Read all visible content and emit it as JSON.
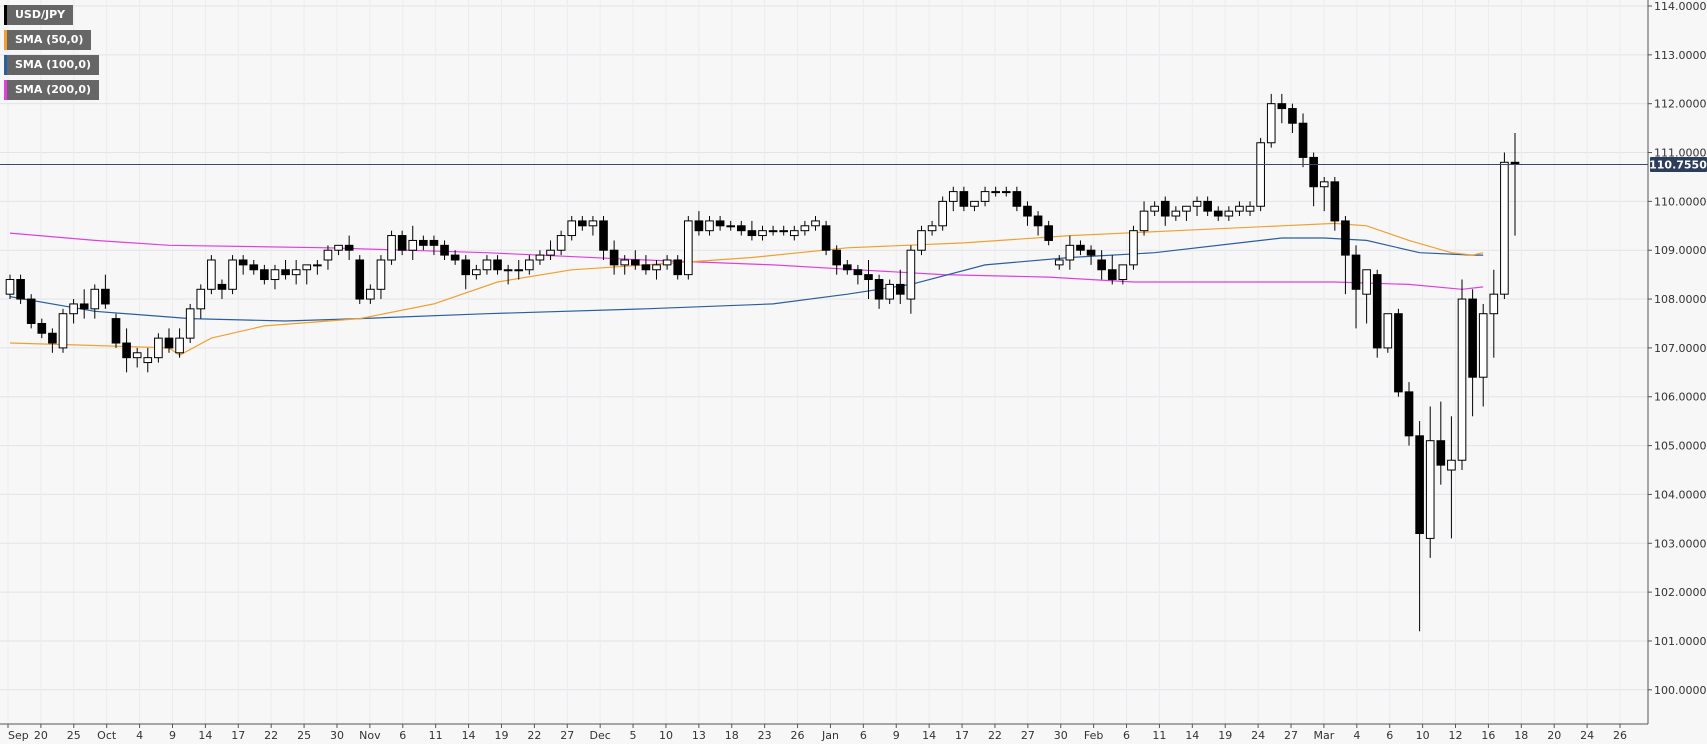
{
  "chart_data": {
    "type": "candlestick",
    "symbol": "USD/JPY",
    "timeframe": "daily",
    "y_axis": {
      "min": 99.3,
      "max": 114.0,
      "ticks": [
        "114.0000",
        "113.0000",
        "112.0000",
        "111.0000",
        "110.0000",
        "109.0000",
        "108.0000",
        "107.0000",
        "106.0000",
        "105.0000",
        "104.0000",
        "103.0000",
        "102.0000",
        "101.0000",
        "100.0000"
      ]
    },
    "x_axis": {
      "labels": [
        "Sep",
        "20",
        "25",
        "Oct",
        "4",
        "9",
        "14",
        "17",
        "22",
        "25",
        "30",
        "Nov",
        "6",
        "11",
        "14",
        "19",
        "22",
        "27",
        "Dec",
        "5",
        "10",
        "13",
        "18",
        "23",
        "26",
        "Jan",
        "6",
        "9",
        "14",
        "17",
        "22",
        "27",
        "30",
        "Feb",
        "6",
        "11",
        "14",
        "19",
        "24",
        "27",
        "Mar",
        "4",
        "6",
        "10",
        "12",
        "16",
        "18",
        "20",
        "24",
        "26"
      ]
    },
    "current_price": {
      "label": "110.7550",
      "value": 110.755
    },
    "colors": {
      "up": "#ffffff",
      "down": "#000000",
      "sma50": "#f0a030",
      "sma100": "#2a5f9e",
      "sma200": "#e040e0",
      "price_line": "#3a4a6a",
      "price_badge": "#2c3e5a"
    },
    "legend": [
      {
        "label": "USD/JPY",
        "color": "#000000"
      },
      {
        "label": "SMA (50,0)",
        "color": "#f0a030"
      },
      {
        "label": "SMA (100,0)",
        "color": "#2a5f9e"
      },
      {
        "label": "SMA (200,0)",
        "color": "#e040e0"
      }
    ],
    "candles": [
      [
        108.1,
        108.5,
        108.0,
        108.4
      ],
      [
        108.4,
        108.5,
        107.9,
        108.0
      ],
      [
        108.0,
        108.1,
        107.4,
        107.5
      ],
      [
        107.5,
        107.6,
        107.2,
        107.3
      ],
      [
        107.3,
        107.4,
        106.9,
        107.1
      ],
      [
        107.0,
        107.8,
        106.9,
        107.7
      ],
      [
        107.7,
        108.0,
        107.5,
        107.9
      ],
      [
        107.9,
        108.2,
        107.6,
        107.8
      ],
      [
        107.8,
        108.3,
        107.6,
        108.2
      ],
      [
        108.2,
        108.5,
        107.8,
        107.9
      ],
      [
        107.6,
        107.7,
        107.0,
        107.1
      ],
      [
        107.1,
        107.4,
        106.5,
        106.8
      ],
      [
        106.8,
        107.0,
        106.6,
        106.9
      ],
      [
        106.7,
        107.0,
        106.5,
        106.8
      ],
      [
        106.8,
        107.3,
        106.7,
        107.2
      ],
      [
        107.2,
        107.4,
        106.9,
        107.0
      ],
      [
        106.9,
        107.4,
        106.8,
        107.2
      ],
      [
        107.2,
        107.9,
        107.1,
        107.8
      ],
      [
        107.8,
        108.3,
        107.6,
        108.2
      ],
      [
        108.2,
        108.9,
        108.1,
        108.8
      ],
      [
        108.3,
        108.4,
        108.0,
        108.2
      ],
      [
        108.2,
        108.9,
        108.1,
        108.8
      ],
      [
        108.8,
        108.9,
        108.5,
        108.7
      ],
      [
        108.7,
        108.8,
        108.5,
        108.6
      ],
      [
        108.6,
        108.7,
        108.3,
        108.4
      ],
      [
        108.4,
        108.7,
        108.2,
        108.6
      ],
      [
        108.6,
        108.8,
        108.4,
        108.5
      ],
      [
        108.5,
        108.8,
        108.3,
        108.6
      ],
      [
        108.6,
        108.7,
        108.3,
        108.7
      ],
      [
        108.7,
        108.8,
        108.5,
        108.7
      ],
      [
        108.8,
        109.1,
        108.6,
        109.0
      ],
      [
        109.0,
        109.1,
        108.9,
        109.1
      ],
      [
        109.1,
        109.3,
        108.8,
        109.0
      ],
      [
        108.8,
        108.9,
        107.9,
        108.0
      ],
      [
        108.0,
        108.3,
        107.9,
        108.2
      ],
      [
        108.2,
        108.9,
        108.0,
        108.8
      ],
      [
        108.8,
        109.4,
        108.7,
        109.3
      ],
      [
        109.3,
        109.4,
        108.9,
        109.0
      ],
      [
        109.0,
        109.5,
        108.8,
        109.2
      ],
      [
        109.2,
        109.3,
        109.0,
        109.1
      ],
      [
        109.2,
        109.3,
        108.9,
        109.1
      ],
      [
        109.1,
        109.2,
        108.8,
        108.9
      ],
      [
        108.9,
        109.0,
        108.7,
        108.8
      ],
      [
        108.8,
        108.9,
        108.2,
        108.5
      ],
      [
        108.5,
        108.7,
        108.4,
        108.6
      ],
      [
        108.6,
        108.9,
        108.5,
        108.8
      ],
      [
        108.8,
        108.9,
        108.5,
        108.6
      ],
      [
        108.6,
        108.7,
        108.3,
        108.6
      ],
      [
        108.6,
        108.8,
        108.4,
        108.6
      ],
      [
        108.6,
        108.9,
        108.5,
        108.8
      ],
      [
        108.8,
        109.0,
        108.7,
        108.9
      ],
      [
        108.9,
        109.2,
        108.8,
        109.0
      ],
      [
        109.0,
        109.4,
        108.9,
        109.3
      ],
      [
        109.3,
        109.7,
        109.2,
        109.6
      ],
      [
        109.6,
        109.7,
        109.4,
        109.5
      ],
      [
        109.5,
        109.7,
        109.3,
        109.6
      ],
      [
        109.6,
        109.7,
        108.8,
        109.0
      ],
      [
        109.0,
        109.2,
        108.5,
        108.7
      ],
      [
        108.7,
        108.9,
        108.5,
        108.8
      ],
      [
        108.8,
        109.0,
        108.6,
        108.7
      ],
      [
        108.7,
        108.9,
        108.5,
        108.6
      ],
      [
        108.6,
        108.8,
        108.4,
        108.7
      ],
      [
        108.7,
        108.9,
        108.6,
        108.8
      ],
      [
        108.8,
        108.9,
        108.4,
        108.5
      ],
      [
        108.5,
        109.7,
        108.4,
        109.6
      ],
      [
        109.6,
        109.8,
        109.3,
        109.4
      ],
      [
        109.4,
        109.7,
        109.3,
        109.6
      ],
      [
        109.6,
        109.7,
        109.4,
        109.5
      ],
      [
        109.5,
        109.6,
        109.4,
        109.5
      ],
      [
        109.5,
        109.6,
        109.3,
        109.4
      ],
      [
        109.4,
        109.6,
        109.2,
        109.3
      ],
      [
        109.3,
        109.5,
        109.2,
        109.4
      ],
      [
        109.4,
        109.5,
        109.3,
        109.4
      ],
      [
        109.4,
        109.5,
        109.3,
        109.4
      ],
      [
        109.3,
        109.5,
        109.2,
        109.4
      ],
      [
        109.4,
        109.6,
        109.3,
        109.5
      ],
      [
        109.5,
        109.7,
        109.4,
        109.6
      ],
      [
        109.5,
        109.6,
        108.9,
        109.0
      ],
      [
        109.0,
        109.1,
        108.5,
        108.7
      ],
      [
        108.7,
        108.8,
        108.5,
        108.6
      ],
      [
        108.6,
        108.7,
        108.3,
        108.5
      ],
      [
        108.5,
        108.8,
        108.0,
        108.4
      ],
      [
        108.4,
        108.5,
        107.8,
        108.0
      ],
      [
        108.0,
        108.4,
        107.9,
        108.3
      ],
      [
        108.3,
        108.6,
        107.9,
        108.1
      ],
      [
        108.0,
        109.1,
        107.7,
        109.0
      ],
      [
        109.0,
        109.5,
        108.9,
        109.4
      ],
      [
        109.4,
        109.6,
        109.3,
        109.5
      ],
      [
        109.5,
        110.1,
        109.4,
        110.0
      ],
      [
        110.0,
        110.3,
        109.8,
        110.2
      ],
      [
        110.2,
        110.3,
        109.8,
        109.9
      ],
      [
        109.9,
        110.0,
        109.8,
        110.0
      ],
      [
        110.0,
        110.3,
        109.9,
        110.2
      ],
      [
        110.2,
        110.3,
        110.1,
        110.2
      ],
      [
        110.2,
        110.3,
        110.1,
        110.2
      ],
      [
        110.2,
        110.3,
        109.8,
        109.9
      ],
      [
        109.9,
        110.0,
        109.5,
        109.7
      ],
      [
        109.7,
        109.8,
        109.3,
        109.5
      ],
      [
        109.5,
        109.6,
        109.1,
        109.2
      ],
      [
        108.7,
        108.9,
        108.6,
        108.8
      ],
      [
        108.8,
        109.3,
        108.6,
        109.1
      ],
      [
        109.1,
        109.2,
        108.9,
        109.0
      ],
      [
        109.0,
        109.1,
        108.7,
        108.9
      ],
      [
        108.8,
        109.0,
        108.4,
        108.6
      ],
      [
        108.6,
        108.9,
        108.3,
        108.4
      ],
      [
        108.4,
        108.7,
        108.3,
        108.7
      ],
      [
        108.7,
        109.5,
        108.6,
        109.4
      ],
      [
        109.4,
        110.0,
        109.3,
        109.8
      ],
      [
        109.8,
        110.0,
        109.7,
        109.9
      ],
      [
        110.0,
        110.1,
        109.5,
        109.7
      ],
      [
        109.7,
        109.9,
        109.6,
        109.8
      ],
      [
        109.8,
        109.9,
        109.6,
        109.9
      ],
      [
        109.9,
        110.1,
        109.7,
        110.0
      ],
      [
        110.0,
        110.1,
        109.7,
        109.8
      ],
      [
        109.8,
        109.9,
        109.6,
        109.7
      ],
      [
        109.7,
        109.9,
        109.6,
        109.8
      ],
      [
        109.8,
        110.0,
        109.7,
        109.9
      ],
      [
        109.8,
        110.0,
        109.7,
        109.9
      ],
      [
        109.9,
        111.3,
        109.8,
        111.2
      ],
      [
        111.2,
        112.2,
        111.1,
        112.0
      ],
      [
        112.0,
        112.2,
        111.6,
        111.9
      ],
      [
        111.9,
        112.0,
        111.4,
        111.6
      ],
      [
        111.6,
        111.8,
        110.7,
        110.9
      ],
      [
        110.9,
        111.0,
        109.9,
        110.3
      ],
      [
        110.3,
        110.5,
        109.8,
        110.4
      ],
      [
        110.4,
        110.5,
        109.4,
        109.6
      ],
      [
        109.6,
        109.7,
        108.1,
        108.9
      ],
      [
        108.9,
        109.1,
        107.4,
        108.2
      ],
      [
        108.1,
        108.6,
        107.5,
        108.6
      ],
      [
        108.5,
        108.6,
        106.8,
        107.0
      ],
      [
        107.0,
        107.7,
        106.9,
        107.7
      ],
      [
        107.7,
        107.8,
        106.0,
        106.1
      ],
      [
        106.1,
        106.3,
        105.0,
        105.2
      ],
      [
        105.2,
        105.5,
        101.2,
        103.2
      ],
      [
        103.1,
        105.8,
        102.7,
        105.1
      ],
      [
        105.1,
        105.9,
        104.2,
        104.6
      ],
      [
        104.5,
        105.6,
        103.1,
        104.7
      ],
      [
        104.7,
        108.4,
        104.5,
        108.0
      ],
      [
        108.0,
        108.2,
        105.6,
        106.4
      ],
      [
        106.4,
        107.9,
        105.8,
        107.7
      ],
      [
        107.7,
        108.6,
        106.8,
        108.1
      ],
      [
        108.1,
        111.0,
        108.0,
        110.8
      ],
      [
        110.8,
        111.4,
        109.3,
        110.755
      ]
    ],
    "sma50": [
      [
        0,
        107.1
      ],
      [
        8,
        107.05
      ],
      [
        15,
        107.0
      ],
      [
        16,
        106.85
      ],
      [
        19,
        107.2
      ],
      [
        24,
        107.45
      ],
      [
        33,
        107.6
      ],
      [
        40,
        107.9
      ],
      [
        46,
        108.35
      ],
      [
        53,
        108.6
      ],
      [
        60,
        108.7
      ],
      [
        70,
        108.85
      ],
      [
        79,
        109.05
      ],
      [
        90,
        109.15
      ],
      [
        100,
        109.3
      ],
      [
        110,
        109.4
      ],
      [
        120,
        109.5
      ],
      [
        125,
        109.55
      ],
      [
        128,
        109.5
      ],
      [
        132,
        109.2
      ],
      [
        136,
        108.95
      ],
      [
        138,
        108.9
      ],
      [
        139,
        108.95
      ]
    ],
    "sma100": [
      [
        0,
        108.05
      ],
      [
        8,
        107.75
      ],
      [
        17,
        107.6
      ],
      [
        26,
        107.55
      ],
      [
        33,
        107.6
      ],
      [
        45,
        107.7
      ],
      [
        60,
        107.8
      ],
      [
        72,
        107.9
      ],
      [
        79,
        108.1
      ],
      [
        85,
        108.3
      ],
      [
        92,
        108.7
      ],
      [
        100,
        108.85
      ],
      [
        108,
        108.95
      ],
      [
        116,
        109.15
      ],
      [
        120,
        109.25
      ],
      [
        124,
        109.25
      ],
      [
        128,
        109.2
      ],
      [
        133,
        108.95
      ],
      [
        138,
        108.9
      ],
      [
        139,
        108.9
      ]
    ],
    "sma200": [
      [
        0,
        109.35
      ],
      [
        8,
        109.2
      ],
      [
        15,
        109.1
      ],
      [
        30,
        109.05
      ],
      [
        45,
        108.95
      ],
      [
        60,
        108.8
      ],
      [
        72,
        108.7
      ],
      [
        80,
        108.6
      ],
      [
        88,
        108.5
      ],
      [
        98,
        108.45
      ],
      [
        106,
        108.35
      ],
      [
        115,
        108.35
      ],
      [
        125,
        108.35
      ],
      [
        132,
        108.3
      ],
      [
        137,
        108.2
      ],
      [
        139,
        108.25
      ]
    ]
  }
}
